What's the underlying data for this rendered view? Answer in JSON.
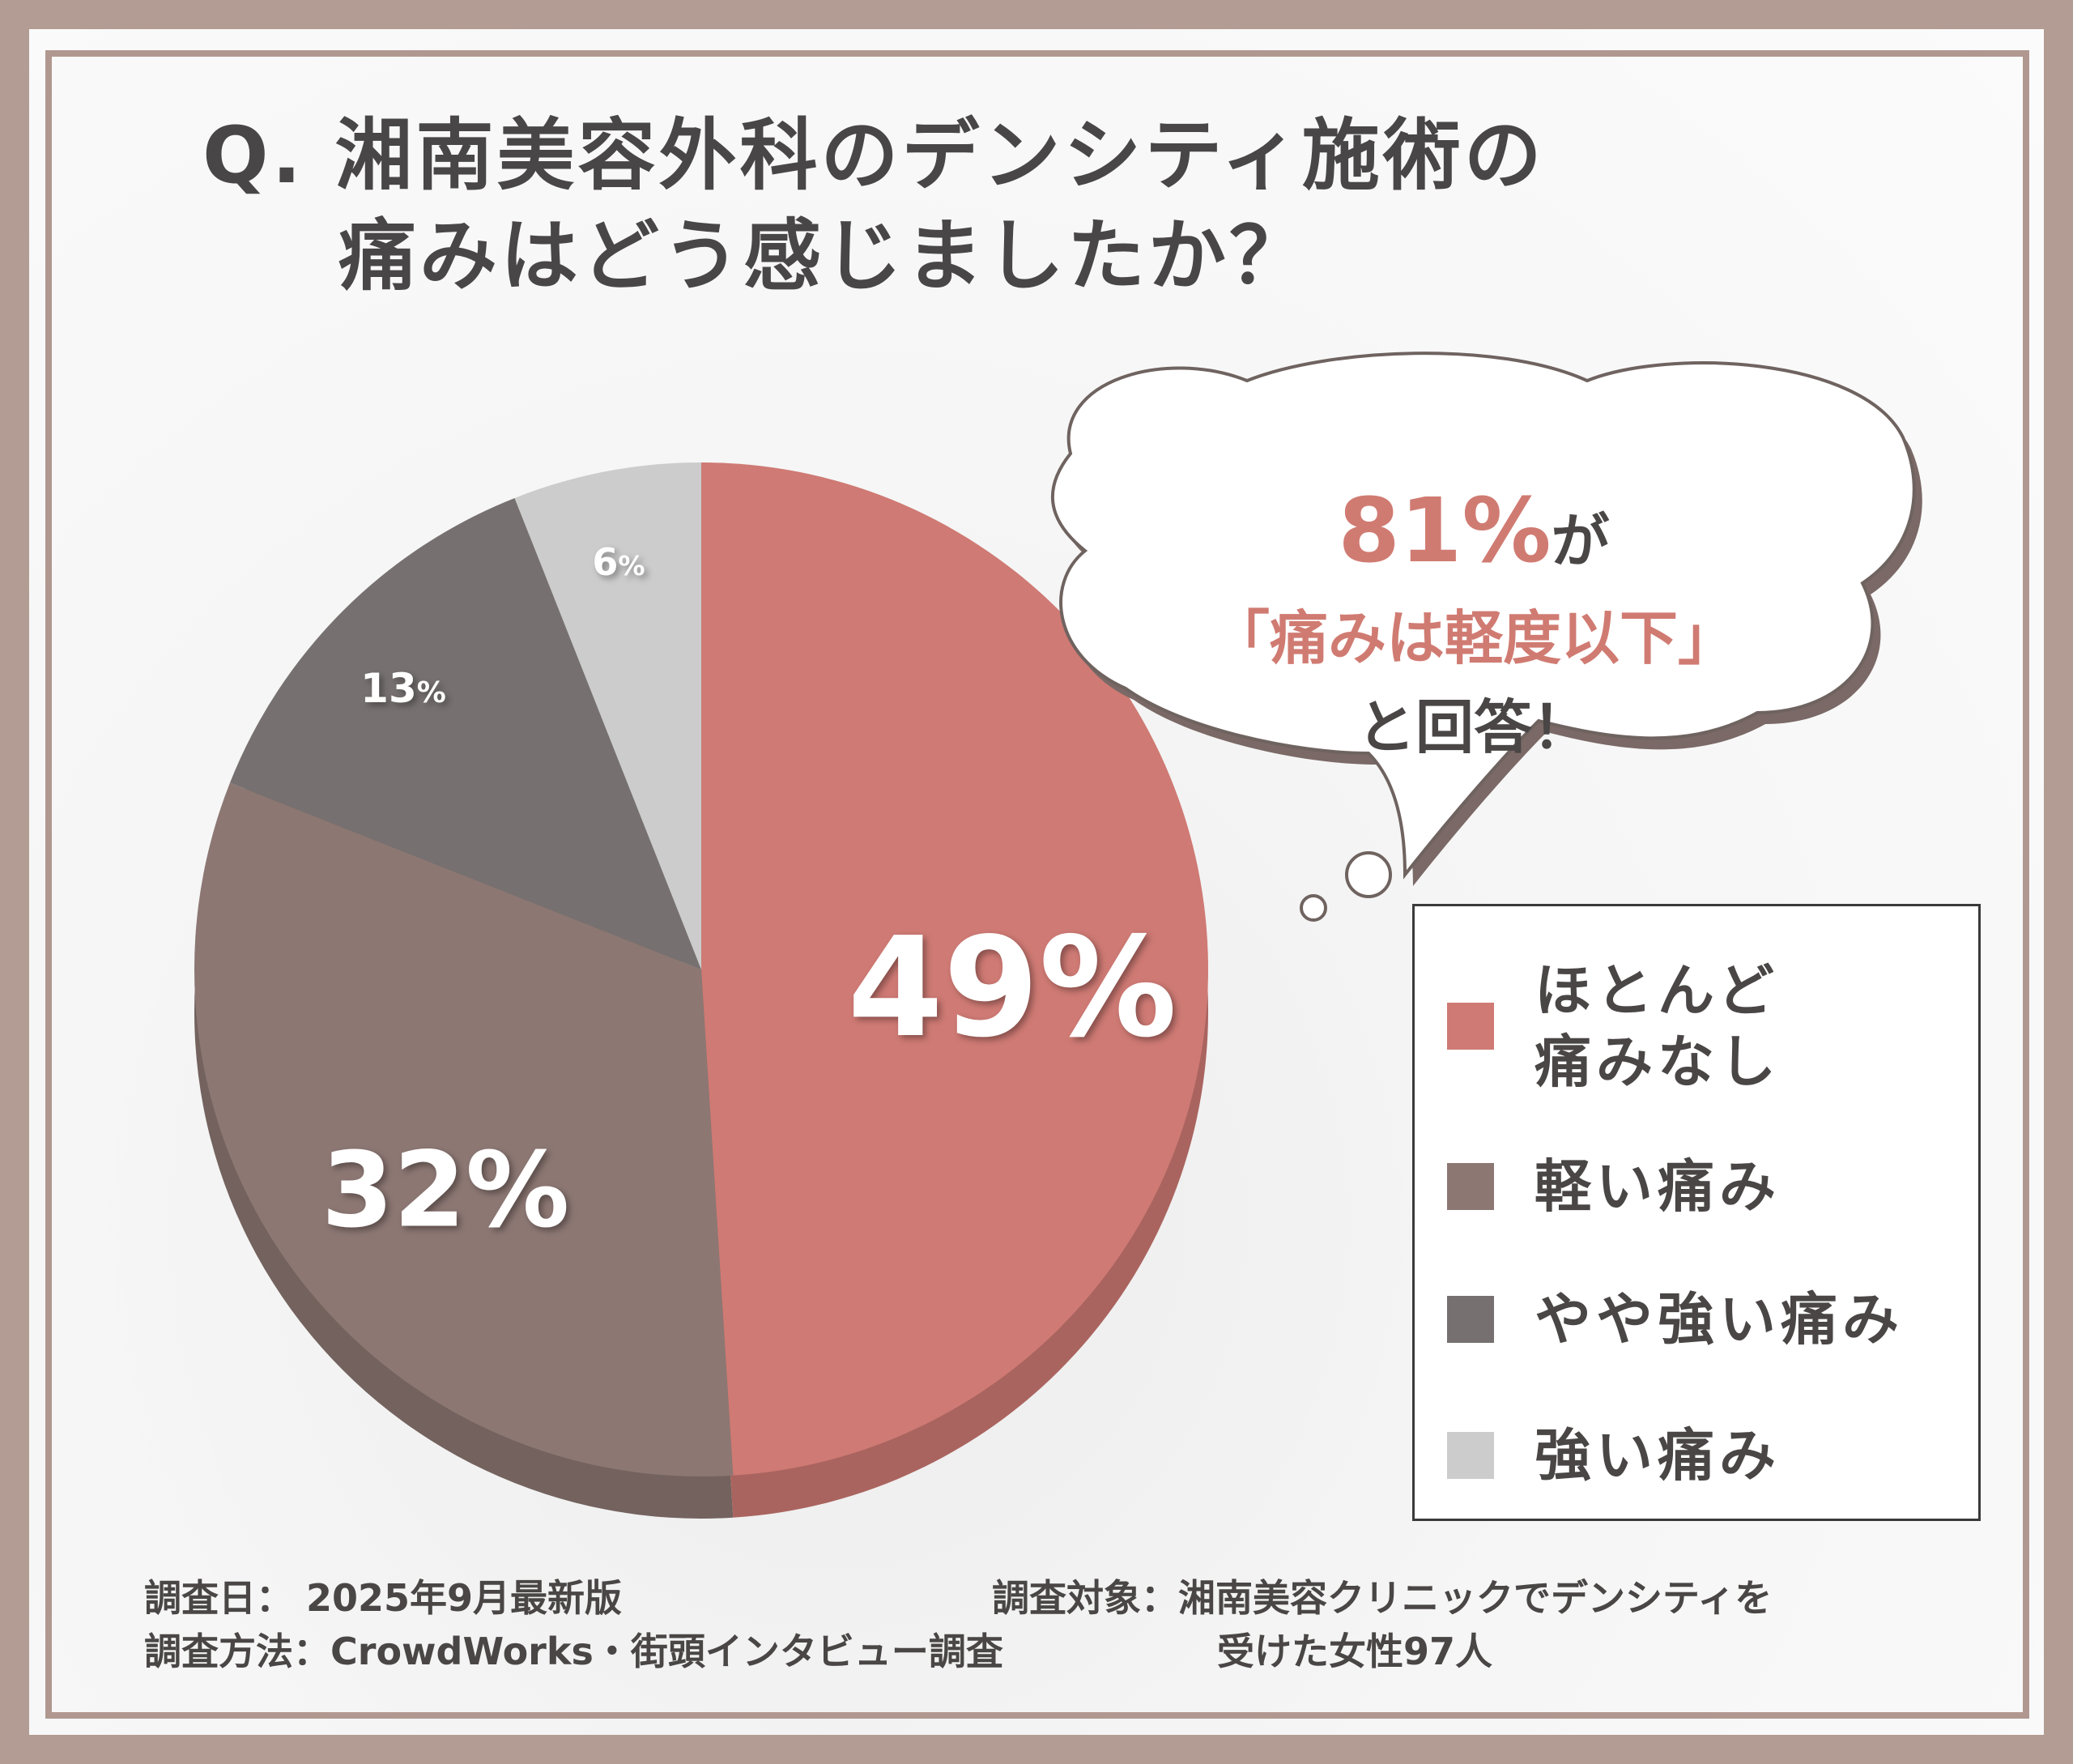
{
  "title": {
    "line1": "Q. 湘南美容外科のデンシティ施術の",
    "line2": "痛みはどう感じましたか？"
  },
  "chart_data": {
    "type": "pie",
    "categories": [
      "ほとんど痛みなし",
      "軽い痛み",
      "やや強い痛み",
      "強い痛み"
    ],
    "values": [
      49,
      32,
      13,
      6
    ],
    "unit": "%",
    "colors": [
      "#cf7a74",
      "#8c7773",
      "#767170",
      "#cccccc"
    ],
    "legend": "right"
  },
  "slice_labels": {
    "s49": "49%",
    "s32": "32%",
    "s13": "13",
    "s6": "6",
    "pct": "%"
  },
  "callout": {
    "percent": "81%",
    "suffix": "が",
    "line2": "「痛みは軽度以下」",
    "line3": "と回答！"
  },
  "legend": [
    {
      "label_line1": "ほとんど",
      "label_line2": "痛みなし",
      "color": "#cf7a74"
    },
    {
      "label_line1": "軽い痛み",
      "label_line2": "",
      "color": "#8c7773"
    },
    {
      "label_line1": "やや強い痛み",
      "label_line2": "",
      "color": "#767170"
    },
    {
      "label_line1": "強い痛み",
      "label_line2": "",
      "color": "#cccccc"
    }
  ],
  "footer": {
    "date": "調査日： 2025年9月最新版",
    "method": "調査方法：CrowdWorks・街頭インタビュー調査",
    "target_line1": "調査対象：湘南美容クリニックでデンシティを",
    "target_line2": "受けた女性97人"
  }
}
